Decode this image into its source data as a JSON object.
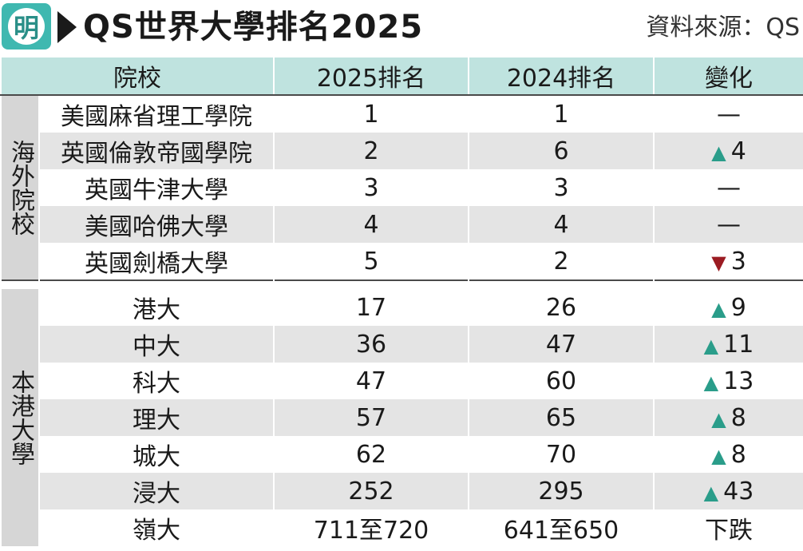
{
  "header": {
    "logo_char": "明",
    "title": "QS世界大學排名2025",
    "source": "資料來源：QS"
  },
  "table": {
    "columns": [
      "院校",
      "2025排名",
      "2024排名",
      "變化"
    ],
    "groups": [
      {
        "label": "海外院校",
        "rows": [
          {
            "name": "美國麻省理工學院",
            "r2025": "1",
            "r2024": "1",
            "dir": "none",
            "change": "—"
          },
          {
            "name": "英國倫敦帝國學院",
            "r2025": "2",
            "r2024": "6",
            "dir": "up",
            "change": "4"
          },
          {
            "name": "英國牛津大學",
            "r2025": "3",
            "r2024": "3",
            "dir": "none",
            "change": "—"
          },
          {
            "name": "美國哈佛大學",
            "r2025": "4",
            "r2024": "4",
            "dir": "none",
            "change": "—"
          },
          {
            "name": "英國劍橋大學",
            "r2025": "5",
            "r2024": "2",
            "dir": "down",
            "change": "3"
          }
        ]
      },
      {
        "label": "本港大學",
        "rows": [
          {
            "name": "港大",
            "r2025": "17",
            "r2024": "26",
            "dir": "up",
            "change": "9"
          },
          {
            "name": "中大",
            "r2025": "36",
            "r2024": "47",
            "dir": "up",
            "change": "11"
          },
          {
            "name": "科大",
            "r2025": "47",
            "r2024": "60",
            "dir": "up",
            "change": "13"
          },
          {
            "name": "理大",
            "r2025": "57",
            "r2024": "65",
            "dir": "up",
            "change": "8"
          },
          {
            "name": "城大",
            "r2025": "62",
            "r2024": "70",
            "dir": "up",
            "change": "8"
          },
          {
            "name": "浸大",
            "r2025": "252",
            "r2024": "295",
            "dir": "up",
            "change": "43"
          },
          {
            "name": "嶺大",
            "r2025": "711至720",
            "r2024": "641至650",
            "dir": "none",
            "change": "下跌"
          }
        ]
      }
    ]
  },
  "colors": {
    "header_bg": "#bfe3df",
    "logo_bg": "#3fb8b0",
    "up": "#2a9d8a",
    "down": "#9b1b22",
    "stripe": "#e4e4e4"
  },
  "icons": {
    "up": "up-triangle-icon",
    "down": "down-triangle-icon"
  }
}
